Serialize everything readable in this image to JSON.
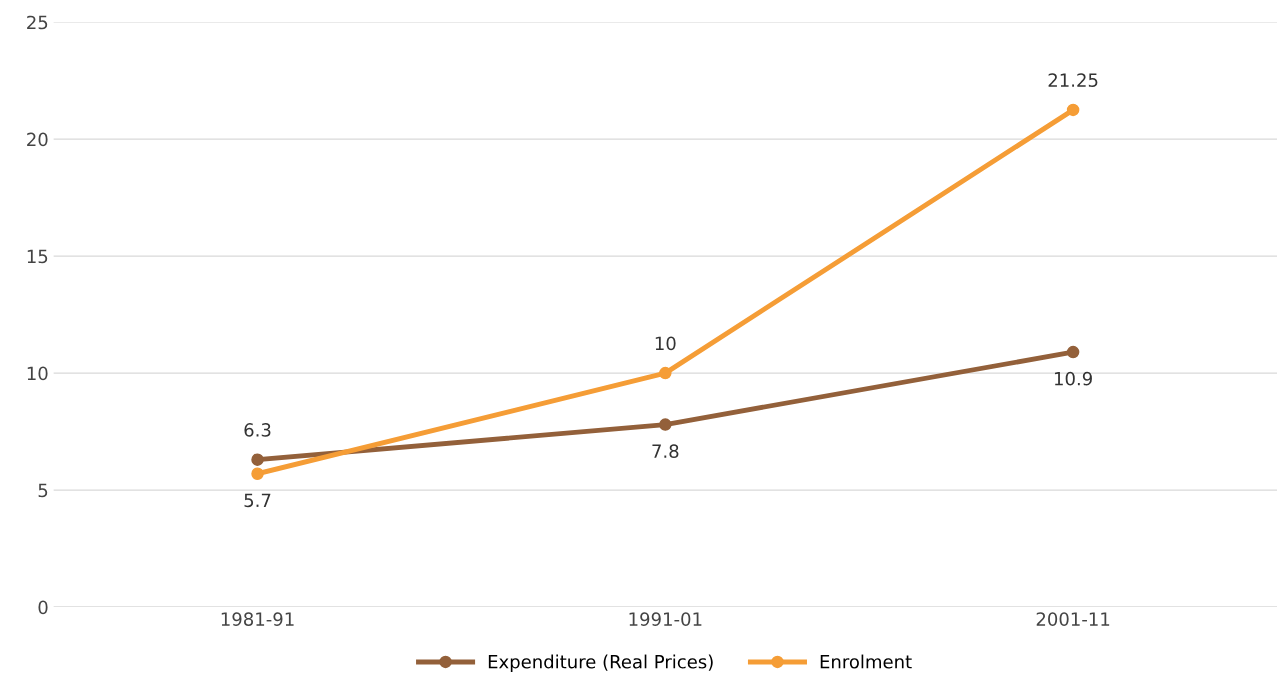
{
  "chart_data": {
    "type": "line",
    "categories": [
      "1981-91",
      "1991-01",
      "2001-11"
    ],
    "series": [
      {
        "name": "Expenditure (Real Prices)",
        "color": "#93603a",
        "values": [
          6.3,
          7.8,
          10.9
        ]
      },
      {
        "name": "Enrolment",
        "color": "#f59d36",
        "values": [
          5.7,
          10,
          21.25
        ]
      }
    ],
    "ylim": [
      0,
      25
    ],
    "yticks": [
      0,
      5,
      10,
      15,
      20,
      25
    ],
    "grid": "y",
    "legend": "bottom",
    "marker": "circle",
    "line_style": "solid",
    "data_labels": true
  }
}
